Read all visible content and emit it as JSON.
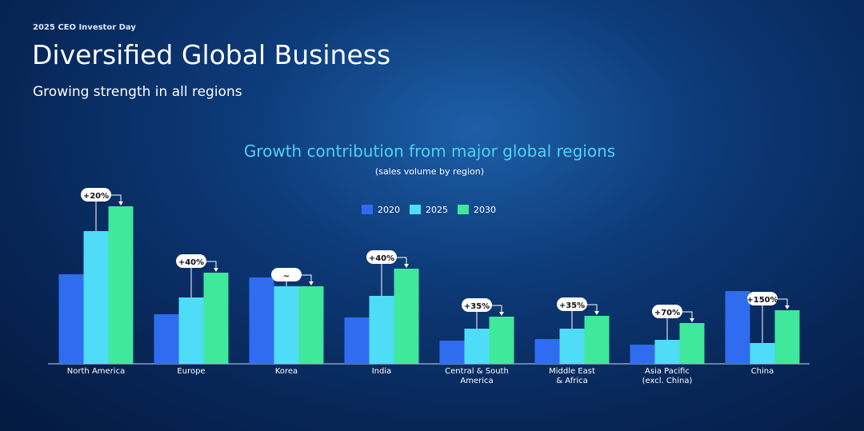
{
  "header": {
    "event": "2025 CEO Investor Day",
    "title": "Diversified Global Business",
    "subtitle": "Growing strength in all regions"
  },
  "chart_data": {
    "type": "bar",
    "title": "Growth contribution from major global regions",
    "subtitle": "(sales volume by region)",
    "categories": [
      "North America",
      "Europe",
      "Korea",
      "India",
      "Central & South\nAmerica",
      "Middle East\n& Africa",
      "Asia Pacific\n(excl. China)",
      "China"
    ],
    "series": [
      {
        "name": "2020",
        "color": "#2f6cf0",
        "values": [
          112,
          62,
          108,
          58,
          29,
          31,
          24,
          91
        ]
      },
      {
        "name": "2025",
        "color": "#4fdcf7",
        "values": [
          166,
          83,
          97,
          85,
          44,
          44,
          30,
          26
        ]
      },
      {
        "name": "2030",
        "color": "#3fe89b",
        "values": [
          197,
          114,
          97,
          119,
          59,
          60,
          51,
          67
        ]
      }
    ],
    "growth_labels": [
      "+20%",
      "+40%",
      "~",
      "+40%",
      "+35%",
      "+35%",
      "+70%",
      "+150%"
    ],
    "ylim": [
      0,
      200
    ]
  }
}
